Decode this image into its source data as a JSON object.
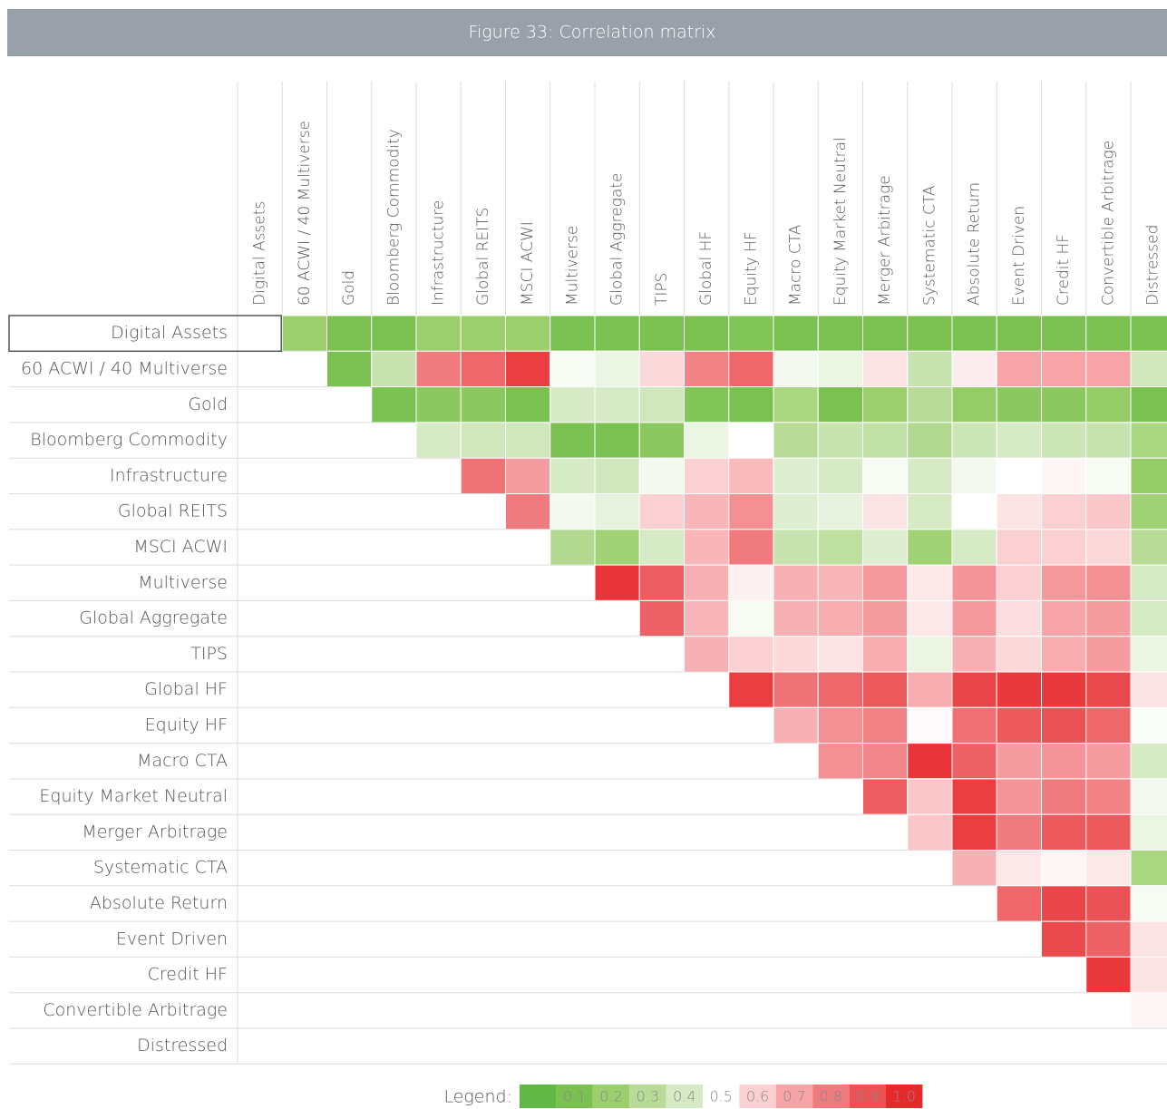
{
  "chart_data": {
    "type": "heatmap",
    "title": "Figure 33: Correlation matrix",
    "categories": [
      "Digital Assets",
      "60 ACWI / 40 Multiverse",
      "Gold",
      "Bloomberg Commodity",
      "Infrastructure",
      "Global REITS",
      "MSCI ACWI",
      "Multiverse",
      "Global Aggregate",
      "TIPS",
      "Global HF",
      "Equity HF",
      "Macro CTA",
      "Equity Market Neutral",
      "Merger Arbitrage",
      "Systematic CTA",
      "Absolute Return",
      "Event Driven",
      "Credit HF",
      "Convertible Arbitrage",
      "Distressed"
    ],
    "values": [
      [
        null,
        0.2,
        0.1,
        0.1,
        0.2,
        0.2,
        0.2,
        0.1,
        0.1,
        0.1,
        0.1,
        0.12,
        0.1,
        0.1,
        0.1,
        0.1,
        0.1,
        0.1,
        0.1,
        0.1,
        0.1
      ],
      [
        null,
        null,
        0.1,
        0.35,
        0.8,
        0.85,
        0.95,
        0.48,
        0.45,
        0.58,
        0.78,
        0.85,
        0.47,
        0.45,
        0.56,
        0.35,
        0.54,
        0.7,
        0.7,
        0.7,
        0.38
      ],
      [
        null,
        null,
        null,
        0.1,
        0.15,
        0.15,
        0.1,
        0.4,
        0.4,
        0.38,
        0.12,
        0.1,
        0.25,
        0.1,
        0.2,
        0.3,
        0.18,
        0.15,
        0.15,
        0.18,
        0.1
      ],
      [
        null,
        null,
        null,
        null,
        0.4,
        0.38,
        0.38,
        0.1,
        0.1,
        0.15,
        0.45,
        0.5,
        0.3,
        0.35,
        0.33,
        0.28,
        0.37,
        0.4,
        0.37,
        0.35,
        0.25
      ],
      [
        null,
        null,
        null,
        null,
        null,
        0.82,
        0.72,
        0.4,
        0.38,
        0.47,
        0.6,
        0.65,
        0.42,
        0.4,
        0.48,
        0.4,
        0.47,
        0.5,
        0.52,
        0.48,
        0.18
      ],
      [
        null,
        null,
        null,
        null,
        null,
        null,
        0.8,
        0.47,
        0.44,
        0.6,
        0.66,
        0.75,
        0.42,
        0.44,
        0.56,
        0.4,
        0.5,
        0.56,
        0.6,
        0.62,
        0.22
      ],
      [
        null,
        null,
        null,
        null,
        null,
        null,
        null,
        0.28,
        0.22,
        0.4,
        0.66,
        0.8,
        0.35,
        0.32,
        0.42,
        0.22,
        0.4,
        0.6,
        0.6,
        0.58,
        0.3
      ],
      [
        null,
        null,
        null,
        null,
        null,
        null,
        null,
        null,
        0.97,
        0.87,
        0.67,
        0.53,
        0.67,
        0.66,
        0.73,
        0.55,
        0.74,
        0.6,
        0.73,
        0.75,
        0.4
      ],
      [
        null,
        null,
        null,
        null,
        null,
        null,
        null,
        null,
        null,
        0.86,
        0.66,
        0.48,
        0.67,
        0.68,
        0.72,
        0.55,
        0.73,
        0.57,
        0.7,
        0.72,
        0.4
      ],
      [
        null,
        null,
        null,
        null,
        null,
        null,
        null,
        null,
        null,
        null,
        0.67,
        0.6,
        0.58,
        0.56,
        0.68,
        0.45,
        0.67,
        0.58,
        0.68,
        0.72,
        0.45
      ],
      [
        null,
        null,
        null,
        null,
        null,
        null,
        null,
        null,
        null,
        null,
        null,
        0.95,
        0.82,
        0.85,
        0.88,
        0.68,
        0.93,
        0.96,
        0.96,
        0.92,
        0.56
      ],
      [
        null,
        null,
        null,
        null,
        null,
        null,
        null,
        null,
        null,
        null,
        null,
        null,
        0.67,
        0.75,
        0.78,
        0.51,
        0.83,
        0.88,
        0.9,
        0.85,
        0.49
      ],
      [
        null,
        null,
        null,
        null,
        null,
        null,
        null,
        null,
        null,
        null,
        null,
        null,
        null,
        0.75,
        0.77,
        0.97,
        0.86,
        0.72,
        0.74,
        0.72,
        0.4
      ],
      [
        null,
        null,
        null,
        null,
        null,
        null,
        null,
        null,
        null,
        null,
        null,
        null,
        null,
        null,
        0.87,
        0.62,
        0.95,
        0.74,
        0.8,
        0.78,
        0.47
      ],
      [
        null,
        null,
        null,
        null,
        null,
        null,
        null,
        null,
        null,
        null,
        null,
        null,
        null,
        null,
        null,
        0.62,
        0.95,
        0.8,
        0.88,
        0.88,
        0.45
      ],
      [
        null,
        null,
        null,
        null,
        null,
        null,
        null,
        null,
        null,
        null,
        null,
        null,
        null,
        null,
        null,
        null,
        0.67,
        0.55,
        0.52,
        0.55,
        0.25
      ],
      [
        null,
        null,
        null,
        null,
        null,
        null,
        null,
        null,
        null,
        null,
        null,
        null,
        null,
        null,
        null,
        null,
        null,
        0.85,
        0.93,
        0.9,
        0.48
      ],
      [
        null,
        null,
        null,
        null,
        null,
        null,
        null,
        null,
        null,
        null,
        null,
        null,
        null,
        null,
        null,
        null,
        null,
        null,
        0.92,
        0.86,
        0.56
      ],
      [
        null,
        null,
        null,
        null,
        null,
        null,
        null,
        null,
        null,
        null,
        null,
        null,
        null,
        null,
        null,
        null,
        null,
        null,
        null,
        0.96,
        0.56
      ],
      [
        null,
        null,
        null,
        null,
        null,
        null,
        null,
        null,
        null,
        null,
        null,
        null,
        null,
        null,
        null,
        null,
        null,
        null,
        null,
        null,
        0.52
      ],
      [
        null,
        null,
        null,
        null,
        null,
        null,
        null,
        null,
        null,
        null,
        null,
        null,
        null,
        null,
        null,
        null,
        null,
        null,
        null,
        null,
        null
      ]
    ],
    "legend": {
      "title": "Legend:",
      "items": [
        {
          "label": "-",
          "color": "#62b845"
        },
        {
          "label": "0.1",
          "color": "#7bc151"
        },
        {
          "label": "0.2",
          "color": "#9bcf6d"
        },
        {
          "label": "0.3",
          "color": "#b8dc97"
        },
        {
          "label": "0.4",
          "color": "#d6eac6"
        },
        {
          "label": "0.5",
          "color": "#ffffff"
        },
        {
          "label": "0.6",
          "color": "#fad0d2"
        },
        {
          "label": "0.7",
          "color": "#f6a4a8"
        },
        {
          "label": "0.8",
          "color": "#f07b7f"
        },
        {
          "label": "0.9",
          "color": "#eb5256"
        },
        {
          "label": "1.0",
          "color": "#e8292c"
        }
      ]
    }
  }
}
